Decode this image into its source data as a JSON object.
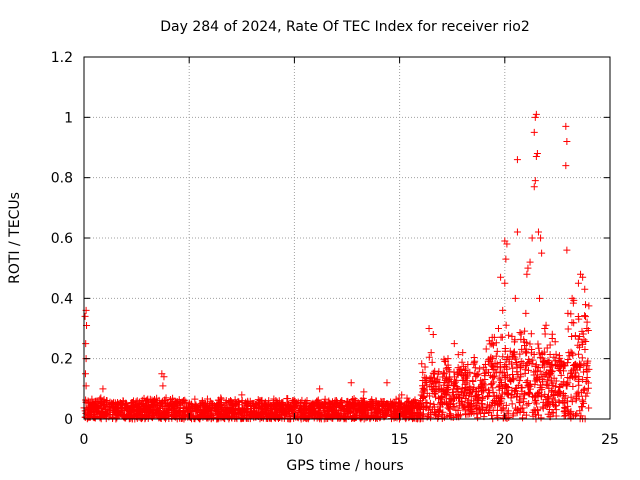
{
  "chart_data": {
    "type": "scatter",
    "title": "Day 284 of 2024, Rate Of TEC Index for receiver rio2",
    "xlabel": "GPS time / hours",
    "ylabel": "ROTI / TECUs",
    "xlim": [
      0,
      25
    ],
    "ylim": [
      0,
      1.2
    ],
    "x_ticks": [
      "0",
      "5",
      "10",
      "15",
      "20",
      "25"
    ],
    "y_ticks": [
      "0",
      "0.2",
      "0.4",
      "0.6",
      "0.8",
      "1",
      "1.2"
    ],
    "grid": true,
    "marker": "plus",
    "color": "#ff0000",
    "series": [
      {
        "points": [
          [
            0.05,
            0.34
          ],
          [
            0.1,
            0.36
          ],
          [
            0.12,
            0.31
          ],
          [
            0.08,
            0.25
          ],
          [
            0.1,
            0.2
          ],
          [
            0.07,
            0.15
          ],
          [
            0.1,
            0.11
          ],
          [
            0.9,
            0.1
          ],
          [
            0.8,
            0.07
          ],
          [
            3.7,
            0.15
          ],
          [
            3.8,
            0.14
          ],
          [
            3.75,
            0.11
          ],
          [
            3.9,
            0.07
          ],
          [
            6.5,
            0.07
          ],
          [
            7.5,
            0.08
          ],
          [
            11.2,
            0.1
          ],
          [
            12.7,
            0.12
          ],
          [
            13.3,
            0.09
          ],
          [
            14.4,
            0.12
          ],
          [
            15.1,
            0.08
          ],
          [
            16.4,
            0.3
          ],
          [
            16.6,
            0.28
          ],
          [
            16.5,
            0.22
          ],
          [
            17.3,
            0.2
          ],
          [
            17.6,
            0.25
          ],
          [
            18.0,
            0.22
          ],
          [
            18.6,
            0.17
          ],
          [
            19.4,
            0.25
          ],
          [
            19.7,
            0.3
          ],
          [
            19.9,
            0.36
          ],
          [
            19.8,
            0.47
          ],
          [
            20.0,
            0.45
          ],
          [
            20.05,
            0.53
          ],
          [
            20.1,
            0.58
          ],
          [
            20.0,
            0.59
          ],
          [
            20.5,
            0.4
          ],
          [
            20.6,
            0.62
          ],
          [
            20.6,
            0.86
          ],
          [
            21.0,
            0.35
          ],
          [
            21.05,
            0.48
          ],
          [
            21.1,
            0.5
          ],
          [
            21.2,
            0.52
          ],
          [
            21.3,
            0.6
          ],
          [
            21.4,
            0.77
          ],
          [
            21.45,
            0.79
          ],
          [
            21.5,
            0.87
          ],
          [
            21.55,
            0.88
          ],
          [
            21.4,
            0.95
          ],
          [
            21.45,
            1.0
          ],
          [
            21.5,
            1.01
          ],
          [
            21.6,
            0.62
          ],
          [
            21.7,
            0.6
          ],
          [
            21.75,
            0.55
          ],
          [
            21.65,
            0.4
          ],
          [
            21.9,
            0.3
          ],
          [
            22.9,
            0.97
          ],
          [
            22.95,
            0.92
          ],
          [
            22.9,
            0.84
          ],
          [
            22.95,
            0.56
          ],
          [
            23.0,
            0.35
          ],
          [
            23.2,
            0.4
          ],
          [
            23.5,
            0.45
          ],
          [
            23.6,
            0.48
          ],
          [
            23.7,
            0.47
          ],
          [
            23.8,
            0.43
          ],
          [
            23.9,
            0.3
          ]
        ]
      }
    ]
  }
}
